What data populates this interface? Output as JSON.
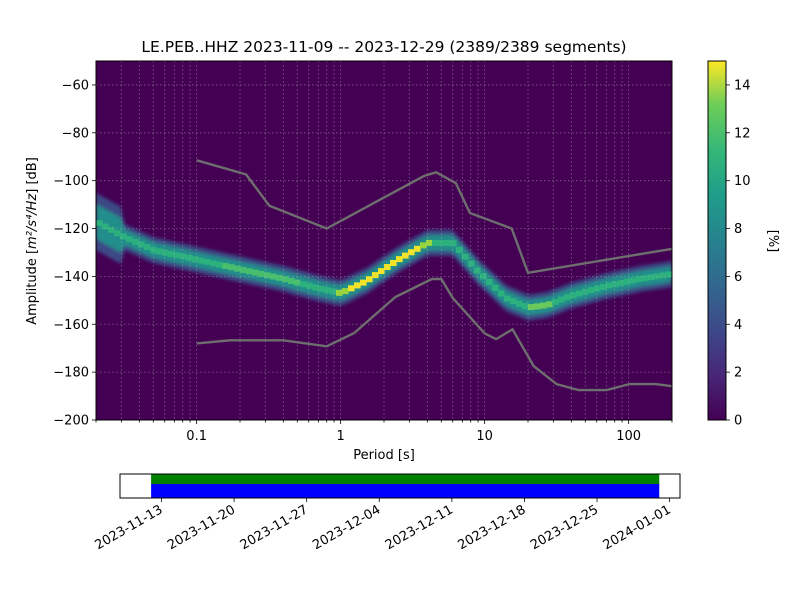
{
  "chart_data": {
    "type": "heatmap",
    "title": "LE.PEB..HHZ   2023-11-09 -- 2023-12-29  (2389/2389 segments)",
    "xlabel": "Period [s]",
    "ylabel_main": "Amplitude [",
    "ylabel_math": "m²/s⁴/Hz",
    "ylabel_tail": "] [dB]",
    "x_scale": "log",
    "xlim": [
      0.02,
      200
    ],
    "ylim": [
      -200,
      -50
    ],
    "x_ticks": [
      {
        "value": 0.1,
        "label": "0.1"
      },
      {
        "value": 1,
        "label": "1"
      },
      {
        "value": 10,
        "label": "10"
      },
      {
        "value": 100,
        "label": "100"
      }
    ],
    "y_ticks": [
      {
        "value": -60,
        "label": "−60"
      },
      {
        "value": -80,
        "label": "−80"
      },
      {
        "value": -100,
        "label": "−100"
      },
      {
        "value": -120,
        "label": "−120"
      },
      {
        "value": -140,
        "label": "−140"
      },
      {
        "value": -160,
        "label": "−160"
      },
      {
        "value": -180,
        "label": "−180"
      },
      {
        "value": -200,
        "label": "−200"
      }
    ],
    "grid": true,
    "colormap": "viridis",
    "colorbar": {
      "label": "[%]",
      "range": [
        0,
        15
      ],
      "ticks": [
        {
          "value": 0,
          "label": "0"
        },
        {
          "value": 2,
          "label": "2"
        },
        {
          "value": 4,
          "label": "4"
        },
        {
          "value": 6,
          "label": "6"
        },
        {
          "value": 8,
          "label": "8"
        },
        {
          "value": 10,
          "label": "10"
        },
        {
          "value": 12,
          "label": "12"
        },
        {
          "value": 14,
          "label": "14"
        }
      ]
    },
    "psd_mode": {
      "period": [
        0.02,
        0.03,
        0.05,
        0.1,
        0.2,
        0.4,
        0.7,
        1.0,
        1.5,
        2.5,
        4.0,
        6.0,
        9.0,
        14.0,
        20.0,
        27.0,
        40.0,
        70.0,
        120.0,
        200.0
      ],
      "db": [
        -117,
        -123,
        -129,
        -133,
        -137,
        -141,
        -145,
        -147,
        -142,
        -133,
        -126,
        -126,
        -138,
        -149,
        -153,
        -152,
        -148,
        -144,
        -141,
        -139
      ]
    },
    "noise_models": [
      {
        "name": "high",
        "period": [
          0.1,
          0.22,
          0.32,
          0.8,
          3.8,
          4.6,
          6.3,
          7.9,
          15.4,
          20.0,
          354.8
        ],
        "db": [
          -91.5,
          -97.4,
          -110.5,
          -120.0,
          -98.0,
          -96.5,
          -101.0,
          -113.5,
          -120.0,
          -138.5,
          -126.0
        ]
      },
      {
        "name": "low",
        "period": [
          0.1,
          0.17,
          0.4,
          0.8,
          1.24,
          2.4,
          4.3,
          5.0,
          6.0,
          10.0,
          12.0,
          15.6,
          21.9,
          31.6,
          45.0,
          70.0,
          101.0,
          154.0,
          328.0
        ],
        "db": [
          -168.0,
          -166.7,
          -166.7,
          -169.2,
          -163.7,
          -148.6,
          -141.1,
          -141.1,
          -149.0,
          -163.8,
          -166.2,
          -162.1,
          -177.5,
          -185.0,
          -187.5,
          -187.5,
          -185.0,
          -185.0,
          -187.5
        ]
      }
    ],
    "time_axis": {
      "start": "2023-11-09",
      "end": "2024-01-02",
      "data_start": "2023-11-12",
      "data_end": "2023-12-31",
      "ticks": [
        "2023-11-13",
        "2023-11-20",
        "2023-11-27",
        "2023-12-04",
        "2023-12-11",
        "2023-12-18",
        "2023-12-25",
        "2024-01-01"
      ],
      "coverage_colors": {
        "top": "#008000",
        "bottom": "#0000ff"
      }
    }
  }
}
